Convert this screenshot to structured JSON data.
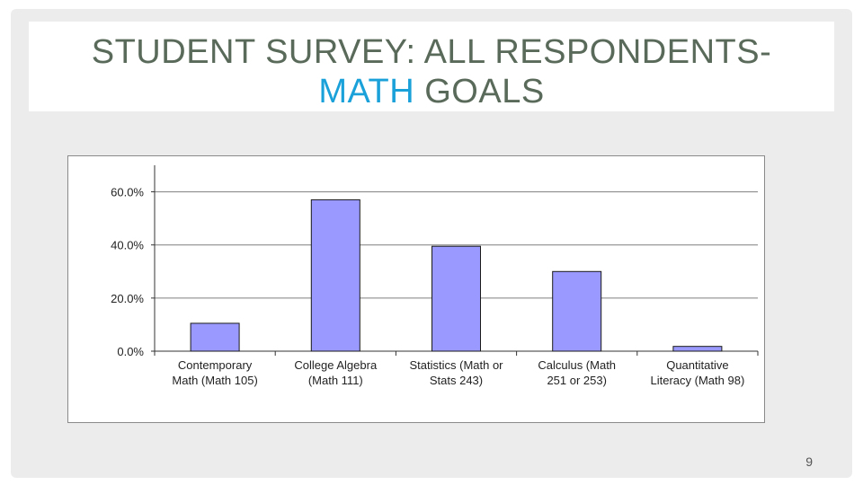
{
  "slide": {
    "title_line1": "STUDENT SURVEY: ALL RESPONDENTS-",
    "title_accent": "MATH",
    "title_rest": " GOALS",
    "page_number": "9"
  },
  "colors": {
    "bar_fill": "#9999ff",
    "bar_stroke": "#1a1a1a",
    "title": "#5a6a5a",
    "accent": "#1ba1d9",
    "grid": "#7f7f7f"
  },
  "chart_data": {
    "type": "bar",
    "categories": [
      [
        "Contemporary",
        "Math (Math 105)"
      ],
      [
        "College Algebra",
        "(Math 111)"
      ],
      [
        "Statistics (Math or",
        "Stats 243)"
      ],
      [
        "Calculus (Math",
        "251 or 253)"
      ],
      [
        "Quantitative",
        "Literacy (Math 98)"
      ]
    ],
    "values": [
      10.5,
      57.0,
      39.5,
      30.0,
      1.8
    ],
    "yticks": [
      "0.0%",
      "20.0%",
      "40.0%",
      "60.0%"
    ],
    "ytick_values": [
      0,
      20,
      40,
      60
    ],
    "ylim": [
      0,
      70
    ],
    "grid": true,
    "legend": false
  }
}
